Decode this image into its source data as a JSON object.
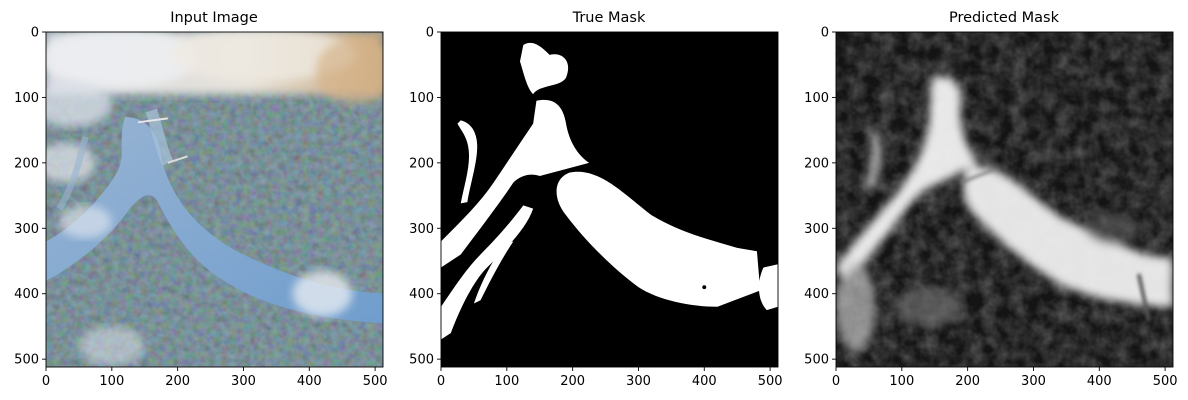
{
  "chart_data": [
    {
      "type": "image",
      "title": "Input Image",
      "content": "aerial-city-river-photo",
      "xlim": [
        0,
        511
      ],
      "ylim": [
        511,
        0
      ],
      "xticks": [
        "0",
        "100",
        "200",
        "300",
        "400",
        "500"
      ],
      "yticks": [
        "0",
        "100",
        "200",
        "300",
        "400",
        "500"
      ]
    },
    {
      "type": "image",
      "title": "True Mask",
      "content": "binary-water-mask",
      "xlim": [
        0,
        511
      ],
      "ylim": [
        511,
        0
      ],
      "xticks": [
        "0",
        "100",
        "200",
        "300",
        "400",
        "500"
      ],
      "yticks": [
        "0",
        "100",
        "200",
        "300",
        "400",
        "500"
      ]
    },
    {
      "type": "image",
      "title": "Predicted Mask",
      "content": "grayscale-predicted-mask",
      "xlim": [
        0,
        511
      ],
      "ylim": [
        511,
        0
      ],
      "xticks": [
        "0",
        "100",
        "200",
        "300",
        "400",
        "500"
      ],
      "yticks": [
        "0",
        "100",
        "200",
        "300",
        "400",
        "500"
      ]
    }
  ]
}
